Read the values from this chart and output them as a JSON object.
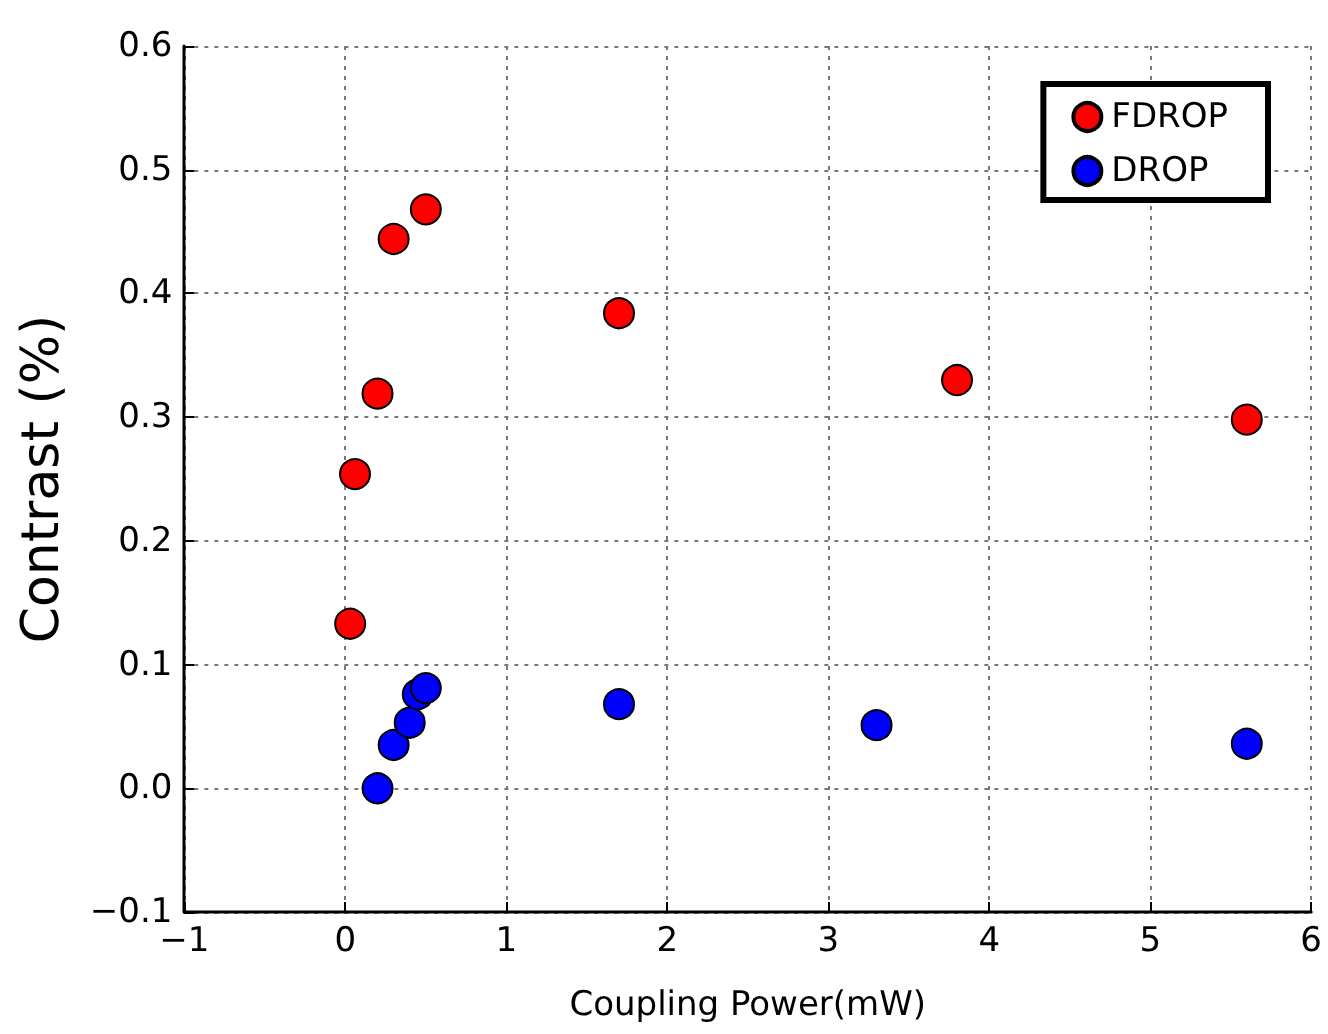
{
  "chart_data": {
    "type": "scatter",
    "xlabel": "Coupling Power(mW)",
    "ylabel": "Contrast (%)",
    "series": [
      {
        "name": "FDROP",
        "color": "#ff0000",
        "x": [
          0.03,
          0.06,
          0.2,
          0.3,
          0.5,
          1.7,
          3.8,
          5.6
        ],
        "values": [
          0.133,
          0.254,
          0.319,
          0.444,
          0.468,
          0.384,
          0.33,
          0.298
        ]
      },
      {
        "name": "DROP",
        "color": "#0000ff",
        "x": [
          0.2,
          0.3,
          0.4,
          0.45,
          0.5,
          1.7,
          3.3,
          5.6
        ],
        "values": [
          0.0,
          0.035,
          0.053,
          0.076,
          0.081,
          0.068,
          0.051,
          0.036
        ]
      }
    ],
    "xlim": [
      -1,
      6
    ],
    "xticks": [
      {
        "value": -1,
        "label": "−1"
      },
      0,
      1,
      2,
      3,
      4,
      5,
      6
    ],
    "ylim": [
      -0.1,
      0.6
    ],
    "yticks": [
      {
        "value": -0.1,
        "label": "−0.1"
      },
      {
        "value": 0,
        "label": "0.0"
      },
      0.1,
      0.2,
      0.3,
      0.4,
      0.5,
      0.6
    ],
    "grid": true,
    "legend": "top right",
    "marker": "circle"
  }
}
